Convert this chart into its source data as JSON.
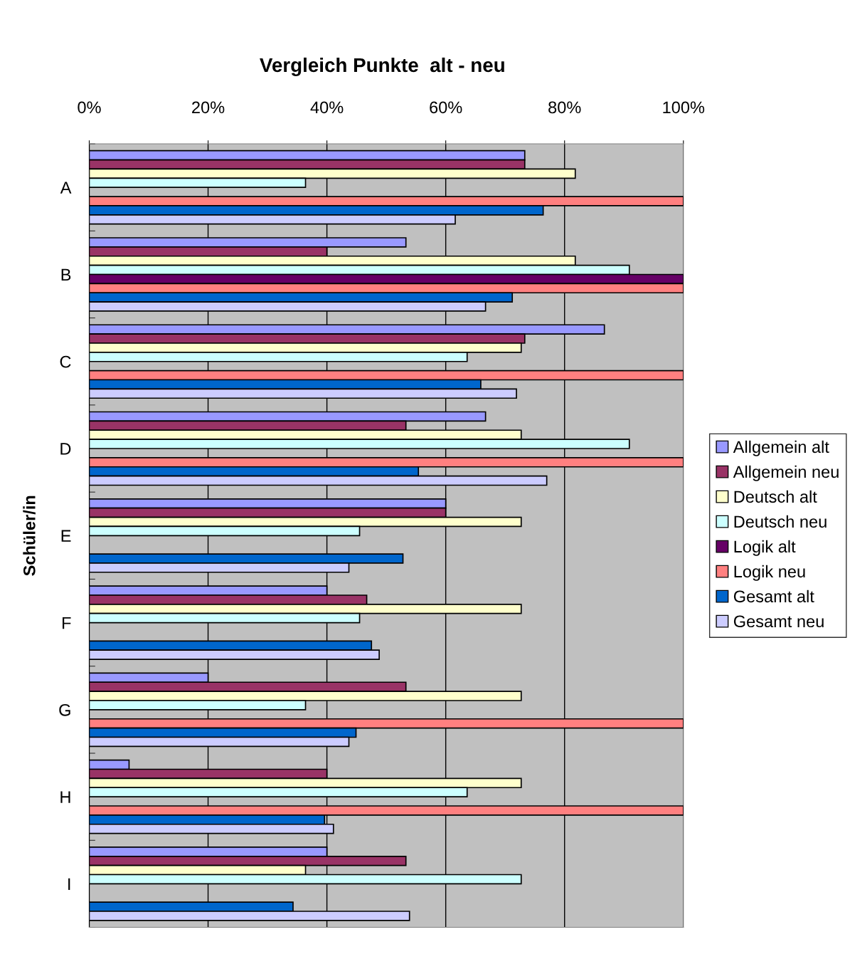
{
  "chart_data": {
    "type": "bar",
    "orientation": "horizontal",
    "title": "Vergleich Punkte  alt - neu",
    "ylabel": "Schüler/in",
    "categories": [
      "A",
      "B",
      "C",
      "D",
      "E",
      "F",
      "G",
      "H",
      "I"
    ],
    "series": [
      {
        "name": "Allgemein alt",
        "color": "#9999ff",
        "values": [
          73.3,
          53.3,
          86.7,
          66.7,
          60,
          40,
          20,
          6.7,
          40
        ]
      },
      {
        "name": "Allgemein neu",
        "color": "#993366",
        "values": [
          73.3,
          40,
          73.3,
          53.3,
          60,
          46.7,
          53.3,
          40,
          53.3
        ]
      },
      {
        "name": "Deutsch alt",
        "color": "#ffffcc",
        "values": [
          81.8,
          81.8,
          72.7,
          72.7,
          72.7,
          72.7,
          72.7,
          72.7,
          36.4
        ]
      },
      {
        "name": "Deutsch neu",
        "color": "#ccffff",
        "values": [
          36.4,
          90.9,
          63.6,
          90.9,
          45.5,
          45.5,
          36.4,
          63.6,
          72.7
        ]
      },
      {
        "name": "Logik alt",
        "color": "#660066",
        "values": [
          null,
          100,
          null,
          null,
          null,
          null,
          null,
          null,
          null
        ]
      },
      {
        "name": "Logik neu",
        "color": "#ff8080",
        "values": [
          100,
          100,
          100,
          100,
          null,
          null,
          100,
          100,
          null
        ]
      },
      {
        "name": "Gesamt alt",
        "color": "#0066cc",
        "values": [
          76.4,
          71.2,
          65.9,
          55.4,
          52.8,
          47.5,
          44.9,
          39.6,
          34.3
        ]
      },
      {
        "name": "Gesamt neu",
        "color": "#ccccff",
        "values": [
          61.6,
          66.7,
          71.9,
          77.0,
          43.7,
          48.8,
          43.7,
          41.1,
          53.9
        ]
      }
    ],
    "xlim": [
      0,
      100
    ],
    "xticks": [
      {
        "value": 0,
        "label": "0%"
      },
      {
        "value": 20,
        "label": "20%"
      },
      {
        "value": 40,
        "label": "40%"
      },
      {
        "value": 60,
        "label": "60%"
      },
      {
        "value": 80,
        "label": "80%"
      },
      {
        "value": 100,
        "label": "100%"
      }
    ],
    "grid": "x",
    "legend": "right"
  }
}
